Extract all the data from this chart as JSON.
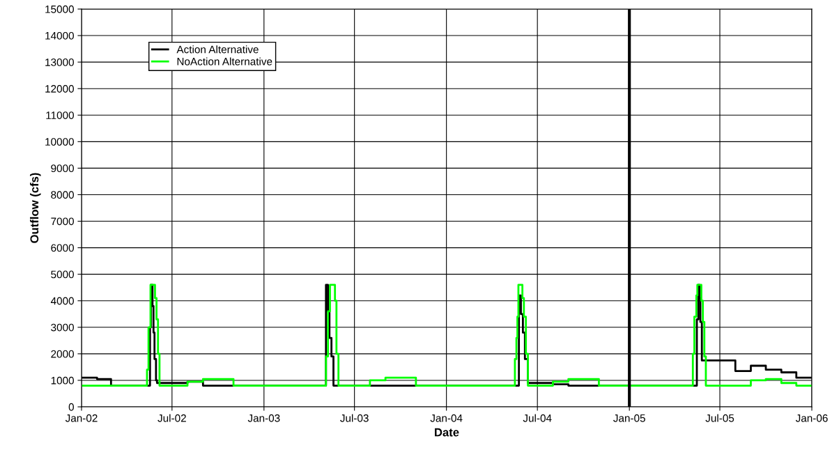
{
  "chart_data": {
    "type": "step",
    "xlabel": "Date",
    "ylabel": "Outflow (cfs)",
    "xlim": [
      "2002-01-01",
      "2006-01-01"
    ],
    "xticks": [
      {
        "value": "2002-01-01",
        "label": "Jan-02"
      },
      {
        "value": "2002-07-01",
        "label": "Jul-02"
      },
      {
        "value": "2003-01-01",
        "label": "Jan-03"
      },
      {
        "value": "2003-07-01",
        "label": "Jul-03"
      },
      {
        "value": "2004-01-01",
        "label": "Jan-04"
      },
      {
        "value": "2004-07-01",
        "label": "Jul-04"
      },
      {
        "value": "2005-01-01",
        "label": "Jan-05"
      },
      {
        "value": "2005-07-01",
        "label": "Jul-05"
      },
      {
        "value": "2006-01-01",
        "label": "Jan-06"
      }
    ],
    "ylim": [
      0,
      15000
    ],
    "yticks": [
      0,
      1000,
      2000,
      3000,
      4000,
      5000,
      6000,
      7000,
      8000,
      9000,
      10000,
      11000,
      12000,
      13000,
      14000,
      15000
    ],
    "grid": true,
    "legend": "top left",
    "marker": "none",
    "line_style": "solid",
    "ref_lines": [
      {
        "axis": "x",
        "value": "2005-01-01",
        "label": null,
        "color": "#000000"
      }
    ],
    "series": [
      {
        "name": "Action Alternative",
        "color": "#000000",
        "x": [
          "2002-01-01",
          "2002-02-01",
          "2002-03-01",
          "2002-05-18",
          "2002-05-20",
          "2002-05-23",
          "2002-05-25",
          "2002-05-27",
          "2002-05-30",
          "2002-06-01",
          "2002-08-01",
          "2002-09-01",
          "2003-05-05",
          "2003-05-09",
          "2003-05-12",
          "2003-05-16",
          "2003-05-20",
          "2004-05-25",
          "2004-05-29",
          "2004-06-02",
          "2004-06-06",
          "2004-06-12",
          "2004-08-01",
          "2004-09-01",
          "2005-05-16",
          "2005-05-19",
          "2005-05-21",
          "2005-05-23",
          "2005-05-26",
          "2005-08-01",
          "2005-09-01",
          "2005-10-01",
          "2005-11-01",
          "2005-12-01",
          "2006-01-01"
        ],
        "values": [
          1100,
          1050,
          800,
          3000,
          4600,
          3800,
          2800,
          1800,
          1000,
          900,
          950,
          800,
          4600,
          3600,
          2600,
          1900,
          800,
          4200,
          3500,
          2800,
          1800,
          900,
          850,
          800,
          3300,
          4600,
          4100,
          3200,
          1750,
          1350,
          1550,
          1400,
          1300,
          1100,
          1100
        ]
      },
      {
        "name": "NoAction Alternative",
        "color": "#00ff00",
        "x": [
          "2002-01-01",
          "2002-05-12",
          "2002-05-15",
          "2002-05-19",
          "2002-05-28",
          "2002-05-31",
          "2002-06-03",
          "2002-06-06",
          "2002-08-01",
          "2002-09-01",
          "2002-11-01",
          "2003-05-05",
          "2003-05-09",
          "2003-05-13",
          "2003-05-23",
          "2003-05-26",
          "2003-05-30",
          "2003-08-01",
          "2003-09-01",
          "2003-11-01",
          "2004-05-17",
          "2004-05-20",
          "2004-05-22",
          "2004-05-24",
          "2004-06-01",
          "2004-06-04",
          "2004-06-08",
          "2004-06-12",
          "2004-08-01",
          "2004-09-01",
          "2004-11-01",
          "2005-05-08",
          "2005-05-11",
          "2005-05-15",
          "2005-05-17",
          "2005-05-25",
          "2005-05-28",
          "2005-05-31",
          "2005-06-03",
          "2005-09-01",
          "2005-10-01",
          "2005-11-01",
          "2005-12-01",
          "2006-01-01"
        ],
        "values": [
          800,
          1400,
          3000,
          4600,
          4100,
          3300,
          2000,
          800,
          950,
          1050,
          800,
          1900,
          3600,
          4600,
          4000,
          2000,
          800,
          1000,
          1100,
          800,
          1800,
          2600,
          3400,
          4600,
          4100,
          3400,
          2000,
          800,
          950,
          1050,
          800,
          2000,
          3400,
          4200,
          4600,
          4000,
          3200,
          1900,
          800,
          1000,
          1050,
          900,
          800,
          800
        ]
      }
    ]
  }
}
